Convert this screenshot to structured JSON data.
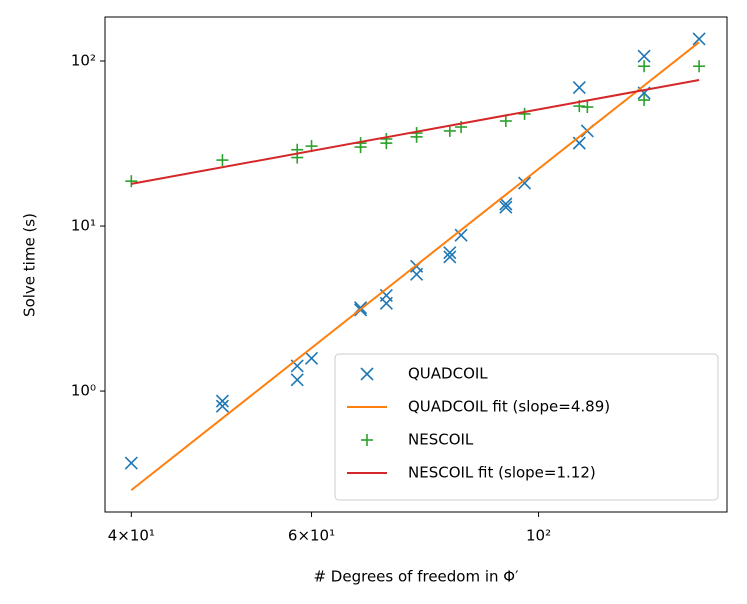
{
  "chart_data": {
    "type": "scatter",
    "x_label": "# Degrees of freedom in Φ′",
    "y_label": "Solve time (s)",
    "xscale": "log",
    "yscale": "log",
    "xlim": [
      37.7,
      152.8
    ],
    "ylim": [
      0.185,
      184.8
    ],
    "xticks": [
      {
        "value": 40,
        "label": "4×10¹"
      },
      {
        "value": 60,
        "label": "6×10¹"
      },
      {
        "value": 100,
        "label": "10²"
      }
    ],
    "yticks": [
      {
        "value": 1,
        "label": "10⁰"
      },
      {
        "value": 10,
        "label": "10¹"
      },
      {
        "value": 100,
        "label": "10²"
      }
    ],
    "legend": "lower right",
    "series": [
      {
        "name": "QUADCOIL",
        "color": "#1f77b4",
        "kind": "scatter",
        "marker": "x",
        "x": [
          40,
          49.1,
          49.1,
          58.1,
          58.1,
          60,
          67,
          67,
          71,
          71,
          76,
          76,
          81.9,
          81.9,
          84,
          92.9,
          92.9,
          96.9,
          109.6,
          109.6,
          111.6,
          126.8,
          126.8,
          143.5
        ],
        "values": [
          0.366,
          0.87,
          0.81,
          1.42,
          1.17,
          1.58,
          3.2,
          3.1,
          3.8,
          3.4,
          5.7,
          5.1,
          6.9,
          6.5,
          8.8,
          13.6,
          13.0,
          18.2,
          69,
          31.8,
          37.7,
          107,
          64,
          136
        ]
      },
      {
        "name": "QUADCOIL fit (slope=4.89)",
        "color": "#ff7f0e",
        "kind": "line",
        "x": [
          40,
          143.5
        ],
        "values": [
          0.251,
          130
        ]
      },
      {
        "name": "NESCOIL",
        "color": "#2ca02c",
        "kind": "scatter",
        "marker": "+",
        "x": [
          40,
          49.1,
          58.1,
          58.1,
          60,
          67,
          67,
          71,
          71,
          76,
          76,
          81.9,
          84,
          92.9,
          96.9,
          109.6,
          111.6,
          126.8,
          126.8,
          143.5
        ],
        "values": [
          18.7,
          25.1,
          29,
          26,
          30.5,
          31.8,
          30.1,
          33.7,
          31.8,
          36.6,
          34.7,
          37.7,
          39.8,
          43.3,
          47.8,
          53.3,
          52.6,
          93,
          58,
          93
        ]
      },
      {
        "name": "NESCOIL fit (slope=1.12)",
        "color": "#d62728",
        "kind": "line",
        "x": [
          40,
          143.5
        ],
        "values": [
          18.0,
          76.7
        ]
      }
    ]
  }
}
